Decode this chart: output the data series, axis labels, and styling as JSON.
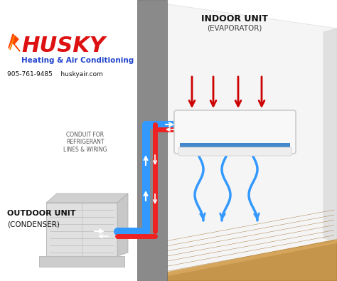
{
  "title_line1": "INDOOR UNIT",
  "title_line2": "(EVAPORATOR)",
  "outdoor_label_line1": "OUTDOOR UNIT",
  "outdoor_label_line2": "(CONDENSER)",
  "conduit_label": "CONDUIT FOR\nREFRIGERANT\nLINES & WIRING",
  "brand": "HUSKY",
  "brand_sub": "Heating & Air Conditioning",
  "contact": "905-761-9485    huskyair.com",
  "bg_color": "#ffffff",
  "wall_color": "#999999",
  "room_back_color": "#f0f0f0",
  "room_right_color": "#e0e0e0",
  "floor_color": "#c4954a",
  "floor_edge_color": "#d4a55a",
  "outdoor_unit_color": "#e8e8e8",
  "pipe_blue": "#3399ff",
  "pipe_red": "#ee2222",
  "arrow_red": "#cc0000",
  "arrow_blue": "#2277ee",
  "brand_color_red": "#dd1111",
  "sub_color": "#2244cc",
  "figsize": [
    4.74,
    3.95
  ],
  "dpi": 100
}
